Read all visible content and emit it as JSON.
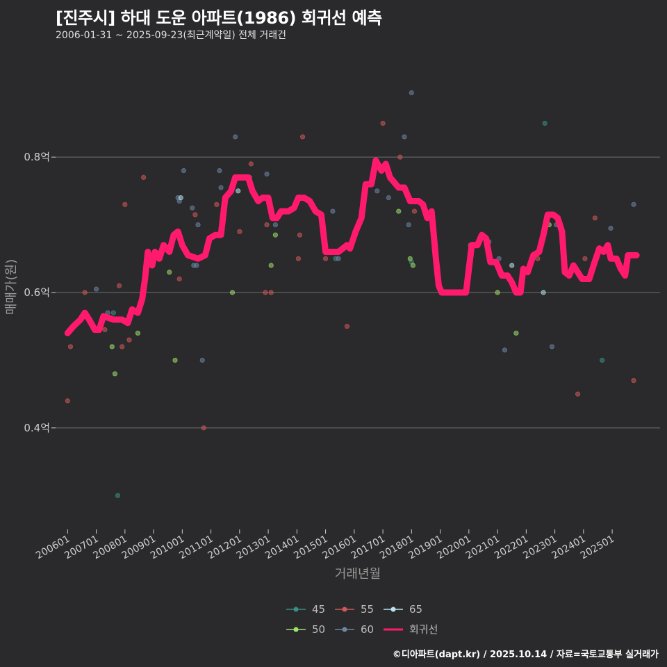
{
  "header": {
    "title": "[진주시] 하대 도운 아파트(1986) 회귀선 예측",
    "subtitle": "2006-01-31 ~ 2025-09-23(최근계약일) 전체 거래건"
  },
  "footer": {
    "credit": "©디아파트(dapt.kr) / 2025.10.14 / 자료=국토교통부 실거래가"
  },
  "colors": {
    "background": "#2a292b",
    "grid": "#6e6e6e",
    "regression": "#ff1a6e",
    "s45": "#3a8f84",
    "s50": "#9ee06a",
    "s55": "#d05a5a",
    "s60": "#6c86a6",
    "s65": "#b8e6f0"
  },
  "chart_data": {
    "type": "scatter",
    "title": "[진주시] 하대 도운 아파트(1986) 회귀선 예측",
    "xlabel": "거래년월",
    "ylabel": "매매가(원)",
    "xlim": [
      2005.58,
      2026.67
    ],
    "ylim": [
      0.25,
      0.95
    ],
    "x_ticks": [
      {
        "label": "200601",
        "value": 2006.0
      },
      {
        "label": "200701",
        "value": 2007.0
      },
      {
        "label": "200801",
        "value": 2008.0
      },
      {
        "label": "200901",
        "value": 2009.0
      },
      {
        "label": "201001",
        "value": 2010.0
      },
      {
        "label": "201101",
        "value": 2011.0
      },
      {
        "label": "201201",
        "value": 2012.0
      },
      {
        "label": "201301",
        "value": 2013.0
      },
      {
        "label": "201401",
        "value": 2014.0
      },
      {
        "label": "201501",
        "value": 2015.0
      },
      {
        "label": "201601",
        "value": 2016.0
      },
      {
        "label": "201701",
        "value": 2017.0
      },
      {
        "label": "201801",
        "value": 2018.0
      },
      {
        "label": "201901",
        "value": 2019.0
      },
      {
        "label": "202001",
        "value": 2020.0
      },
      {
        "label": "202101",
        "value": 2021.0
      },
      {
        "label": "202201",
        "value": 2022.0
      },
      {
        "label": "202301",
        "value": 2023.0
      },
      {
        "label": "202401",
        "value": 2024.0
      },
      {
        "label": "202501",
        "value": 2025.0
      }
    ],
    "y_ticks": [
      {
        "label": "0.4억",
        "value": 0.4
      },
      {
        "label": "0.6억",
        "value": 0.6
      },
      {
        "label": "0.8억",
        "value": 0.8
      }
    ],
    "legend": [
      {
        "key": "s45",
        "label": "45"
      },
      {
        "key": "s55",
        "label": "55"
      },
      {
        "key": "s65",
        "label": "65"
      },
      {
        "key": "s50",
        "label": "50"
      },
      {
        "key": "s60",
        "label": "60"
      },
      {
        "key": "regression",
        "label": "회귀선"
      }
    ],
    "series": [
      {
        "name": "45",
        "key": "s45",
        "points": [
          [
            2007.6,
            0.57
          ],
          [
            2007.75,
            0.3
          ],
          [
            2015.35,
            0.65
          ],
          [
            2018.0,
            0.645
          ],
          [
            2020.05,
            0.67
          ],
          [
            2022.65,
            0.85
          ],
          [
            2024.65,
            0.5
          ]
        ]
      },
      {
        "name": "50",
        "key": "s50",
        "points": [
          [
            2007.55,
            0.52
          ],
          [
            2007.65,
            0.48
          ],
          [
            2008.45,
            0.54
          ],
          [
            2009.55,
            0.63
          ],
          [
            2009.75,
            0.5
          ],
          [
            2011.75,
            0.6
          ],
          [
            2013.1,
            0.64
          ],
          [
            2013.25,
            0.685
          ],
          [
            2017.55,
            0.72
          ],
          [
            2017.95,
            0.65
          ],
          [
            2018.05,
            0.64
          ],
          [
            2021.0,
            0.6
          ],
          [
            2021.65,
            0.54
          ],
          [
            2022.8,
            0.7
          ]
        ]
      },
      {
        "name": "55",
        "key": "s55",
        "points": [
          [
            2006.0,
            0.44
          ],
          [
            2006.1,
            0.52
          ],
          [
            2006.6,
            0.6
          ],
          [
            2007.3,
            0.545
          ],
          [
            2007.8,
            0.61
          ],
          [
            2007.9,
            0.52
          ],
          [
            2008.0,
            0.73
          ],
          [
            2008.15,
            0.53
          ],
          [
            2008.45,
            0.57
          ],
          [
            2008.65,
            0.77
          ],
          [
            2009.9,
            0.62
          ],
          [
            2010.45,
            0.715
          ],
          [
            2010.75,
            0.4
          ],
          [
            2011.2,
            0.73
          ],
          [
            2012.0,
            0.69
          ],
          [
            2012.4,
            0.79
          ],
          [
            2012.9,
            0.6
          ],
          [
            2012.95,
            0.7
          ],
          [
            2013.1,
            0.6
          ],
          [
            2014.05,
            0.65
          ],
          [
            2014.1,
            0.685
          ],
          [
            2014.2,
            0.83
          ],
          [
            2015.0,
            0.65
          ],
          [
            2015.75,
            0.55
          ],
          [
            2017.0,
            0.85
          ],
          [
            2017.6,
            0.8
          ],
          [
            2018.1,
            0.72
          ],
          [
            2022.4,
            0.65
          ],
          [
            2023.8,
            0.45
          ],
          [
            2024.05,
            0.65
          ],
          [
            2024.4,
            0.71
          ],
          [
            2025.75,
            0.47
          ]
        ]
      },
      {
        "name": "60",
        "key": "s60",
        "points": [
          [
            2007.4,
            0.57
          ],
          [
            2007.0,
            0.605
          ],
          [
            2009.85,
            0.74
          ],
          [
            2009.9,
            0.735
          ],
          [
            2010.05,
            0.78
          ],
          [
            2010.35,
            0.725
          ],
          [
            2010.4,
            0.64
          ],
          [
            2010.5,
            0.64
          ],
          [
            2010.55,
            0.7
          ],
          [
            2010.7,
            0.5
          ],
          [
            2011.3,
            0.78
          ],
          [
            2011.35,
            0.755
          ],
          [
            2011.85,
            0.83
          ],
          [
            2012.35,
            0.77
          ],
          [
            2012.95,
            0.775
          ],
          [
            2013.25,
            0.7
          ],
          [
            2014.0,
            0.735
          ],
          [
            2015.25,
            0.72
          ],
          [
            2015.45,
            0.65
          ],
          [
            2016.8,
            0.75
          ],
          [
            2017.2,
            0.74
          ],
          [
            2017.75,
            0.83
          ],
          [
            2017.9,
            0.7
          ],
          [
            2018.0,
            0.895
          ],
          [
            2018.55,
            0.715
          ],
          [
            2020.7,
            0.675
          ],
          [
            2021.05,
            0.65
          ],
          [
            2021.25,
            0.515
          ],
          [
            2022.9,
            0.52
          ],
          [
            2023.05,
            0.7
          ],
          [
            2024.95,
            0.695
          ],
          [
            2025.75,
            0.73
          ]
        ]
      },
      {
        "name": "65",
        "key": "s65",
        "points": [
          [
            2009.95,
            0.74
          ],
          [
            2011.95,
            0.75
          ],
          [
            2021.5,
            0.64
          ],
          [
            2022.6,
            0.6
          ]
        ]
      }
    ],
    "regression": [
      [
        2006.0,
        0.54
      ],
      [
        2006.2,
        0.55
      ],
      [
        2006.45,
        0.56
      ],
      [
        2006.6,
        0.57
      ],
      [
        2006.75,
        0.56
      ],
      [
        2006.95,
        0.545
      ],
      [
        2007.1,
        0.545
      ],
      [
        2007.25,
        0.565
      ],
      [
        2007.6,
        0.56
      ],
      [
        2007.9,
        0.56
      ],
      [
        2008.1,
        0.555
      ],
      [
        2008.25,
        0.575
      ],
      [
        2008.45,
        0.57
      ],
      [
        2008.6,
        0.59
      ],
      [
        2008.7,
        0.62
      ],
      [
        2008.8,
        0.66
      ],
      [
        2008.95,
        0.64
      ],
      [
        2009.05,
        0.66
      ],
      [
        2009.2,
        0.65
      ],
      [
        2009.35,
        0.67
      ],
      [
        2009.55,
        0.66
      ],
      [
        2009.7,
        0.685
      ],
      [
        2009.85,
        0.69
      ],
      [
        2010.0,
        0.67
      ],
      [
        2010.2,
        0.655
      ],
      [
        2010.55,
        0.65
      ],
      [
        2010.8,
        0.655
      ],
      [
        2010.95,
        0.68
      ],
      [
        2011.15,
        0.685
      ],
      [
        2011.35,
        0.685
      ],
      [
        2011.5,
        0.74
      ],
      [
        2011.7,
        0.75
      ],
      [
        2011.85,
        0.77
      ],
      [
        2012.05,
        0.77
      ],
      [
        2012.3,
        0.77
      ],
      [
        2012.45,
        0.75
      ],
      [
        2012.65,
        0.735
      ],
      [
        2012.8,
        0.74
      ],
      [
        2013.0,
        0.74
      ],
      [
        2013.15,
        0.71
      ],
      [
        2013.3,
        0.71
      ],
      [
        2013.45,
        0.72
      ],
      [
        2013.7,
        0.72
      ],
      [
        2013.9,
        0.725
      ],
      [
        2014.05,
        0.74
      ],
      [
        2014.25,
        0.74
      ],
      [
        2014.45,
        0.735
      ],
      [
        2014.65,
        0.72
      ],
      [
        2014.85,
        0.715
      ],
      [
        2015.0,
        0.66
      ],
      [
        2015.2,
        0.66
      ],
      [
        2015.45,
        0.66
      ],
      [
        2015.6,
        0.665
      ],
      [
        2015.75,
        0.67
      ],
      [
        2015.85,
        0.665
      ],
      [
        2016.05,
        0.69
      ],
      [
        2016.25,
        0.71
      ],
      [
        2016.4,
        0.76
      ],
      [
        2016.6,
        0.76
      ],
      [
        2016.75,
        0.795
      ],
      [
        2016.95,
        0.78
      ],
      [
        2017.1,
        0.79
      ],
      [
        2017.25,
        0.77
      ],
      [
        2017.35,
        0.765
      ],
      [
        2017.55,
        0.755
      ],
      [
        2017.75,
        0.755
      ],
      [
        2017.95,
        0.735
      ],
      [
        2018.25,
        0.735
      ],
      [
        2018.4,
        0.73
      ],
      [
        2018.55,
        0.71
      ],
      [
        2018.7,
        0.72
      ],
      [
        2018.85,
        0.65
      ],
      [
        2018.95,
        0.61
      ],
      [
        2019.05,
        0.6
      ],
      [
        2019.5,
        0.6
      ],
      [
        2019.9,
        0.6
      ],
      [
        2020.1,
        0.67
      ],
      [
        2020.3,
        0.67
      ],
      [
        2020.45,
        0.685
      ],
      [
        2020.6,
        0.68
      ],
      [
        2020.75,
        0.645
      ],
      [
        2020.95,
        0.645
      ],
      [
        2021.15,
        0.625
      ],
      [
        2021.35,
        0.625
      ],
      [
        2021.5,
        0.615
      ],
      [
        2021.65,
        0.6
      ],
      [
        2021.8,
        0.6
      ],
      [
        2021.9,
        0.635
      ],
      [
        2022.05,
        0.63
      ],
      [
        2022.25,
        0.655
      ],
      [
        2022.45,
        0.66
      ],
      [
        2022.6,
        0.685
      ],
      [
        2022.75,
        0.715
      ],
      [
        2022.95,
        0.715
      ],
      [
        2023.1,
        0.71
      ],
      [
        2023.25,
        0.69
      ],
      [
        2023.35,
        0.63
      ],
      [
        2023.5,
        0.625
      ],
      [
        2023.65,
        0.64
      ],
      [
        2023.8,
        0.63
      ],
      [
        2023.95,
        0.62
      ],
      [
        2024.2,
        0.62
      ],
      [
        2024.35,
        0.64
      ],
      [
        2024.55,
        0.665
      ],
      [
        2024.7,
        0.66
      ],
      [
        2024.85,
        0.67
      ],
      [
        2024.95,
        0.65
      ],
      [
        2025.15,
        0.65
      ],
      [
        2025.3,
        0.635
      ],
      [
        2025.45,
        0.625
      ],
      [
        2025.55,
        0.655
      ],
      [
        2025.85,
        0.655
      ]
    ]
  }
}
